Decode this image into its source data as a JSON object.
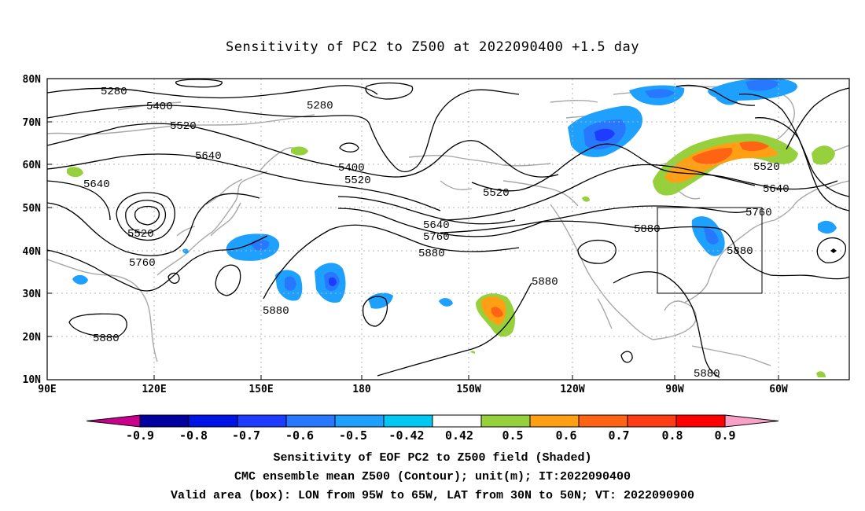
{
  "title": "Sensitivity of PC2 to Z500 at 2022090400 +1.5 day",
  "map": {
    "lat_labels": [
      "80N",
      "70N",
      "60N",
      "50N",
      "40N",
      "30N",
      "20N",
      "10N"
    ],
    "lon_labels": [
      "90E",
      "120E",
      "150E",
      "180",
      "150W",
      "120W",
      "90W",
      "60W"
    ],
    "contour_labels": [
      "5280",
      "5400",
      "5280",
      "5520",
      "5640",
      "5400",
      "5520",
      "5640",
      "5520",
      "5520",
      "5640",
      "5760",
      "5880",
      "5640",
      "5760",
      "5520",
      "5760",
      "5880",
      "5880",
      "5880",
      "5880",
      "5880",
      "5880"
    ],
    "valid_box": {
      "lon_range": [
        "95W",
        "65W"
      ],
      "lat_range": [
        "30N",
        "50N"
      ]
    }
  },
  "colorbar": {
    "labels": [
      "-0.9",
      "-0.8",
      "-0.7",
      "-0.6",
      "-0.5",
      "-0.42",
      "0.42",
      "0.5",
      "0.6",
      "0.7",
      "0.8",
      "0.9"
    ],
    "colors": [
      "#c8008c",
      "#0000a0",
      "#0014e6",
      "#1e3cff",
      "#2878ff",
      "#1ea0ff",
      "#00c8f0",
      "#ffffff",
      "#96d03c",
      "#ffa014",
      "#ff6414",
      "#ff3c14",
      "#ff0000",
      "#f8a0c8"
    ]
  },
  "captions": {
    "line1": "Sensitivity of EOF PC2 to Z500 field (Shaded)",
    "line2": "CMC ensemble mean Z500 (Contour); unit(m); IT:2022090400",
    "line3": "Valid area (box): LON from 95W to 65W, LAT from 30N to 50N; VT: 2022090900"
  }
}
